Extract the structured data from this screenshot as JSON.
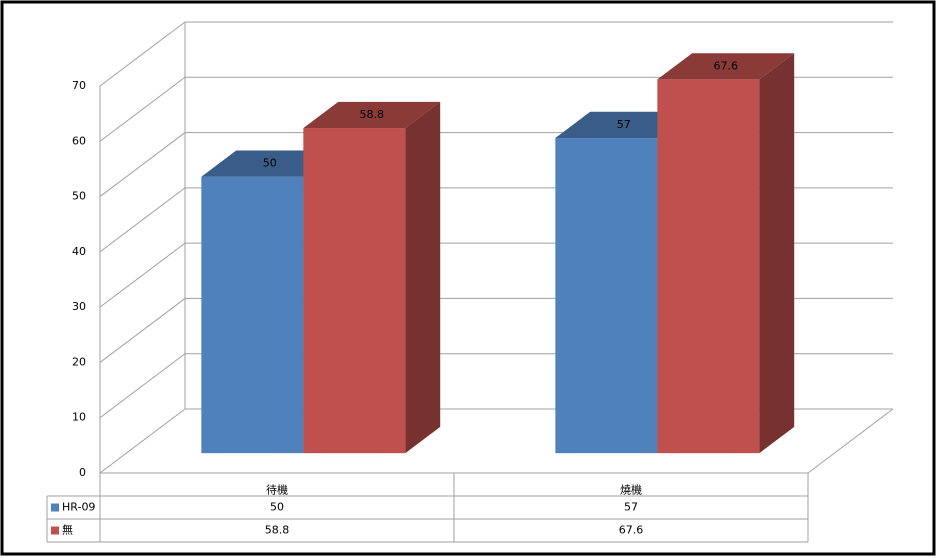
{
  "chart_data": {
    "type": "bar3d",
    "categories": [
      "待機",
      "燒機"
    ],
    "series": [
      {
        "name": "HR-09",
        "color": "#4f81bd",
        "values": [
          50,
          57
        ]
      },
      {
        "name": "無",
        "color": "#c0504d",
        "values": [
          58.8,
          67.6
        ]
      }
    ],
    "ylim": [
      0,
      70
    ],
    "yticks": [
      0,
      10,
      20,
      30,
      40,
      50,
      60,
      70
    ],
    "grid": true
  }
}
